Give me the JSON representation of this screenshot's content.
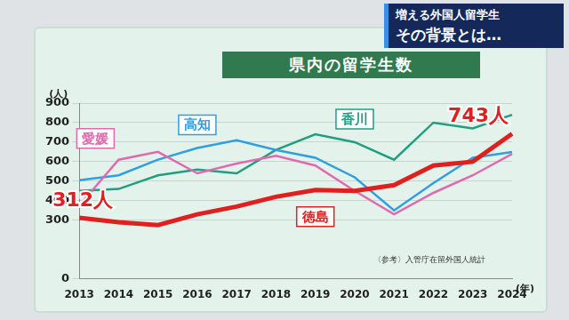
{
  "header": {
    "lines": [
      "増える外国人留学生",
      "その背景とは…"
    ]
  },
  "chart_data": {
    "type": "line",
    "title": "県内の留学生数",
    "y_label": "(人)",
    "x_label": "(年)",
    "source": "〈参考〉入管庁在留外国人統計",
    "categories": [
      "2013",
      "2014",
      "2015",
      "2016",
      "2017",
      "2018",
      "2019",
      "2020",
      "2021",
      "2022",
      "2023",
      "2024"
    ],
    "series": [
      {
        "name": "愛媛",
        "color": "#e06aae",
        "values": [
          375,
          610,
          650,
          540,
          590,
          630,
          580,
          450,
          330,
          440,
          530,
          640
        ]
      },
      {
        "name": "高知",
        "color": "#2f9fe0",
        "values": [
          505,
          530,
          610,
          670,
          710,
          660,
          620,
          520,
          350,
          490,
          620,
          650
        ]
      },
      {
        "name": "香川",
        "color": "#1f9e80",
        "values": [
          450,
          460,
          530,
          560,
          540,
          660,
          740,
          700,
          610,
          800,
          770,
          840
        ]
      },
      {
        "name": "徳島",
        "color": "#e0201e",
        "values": [
          312,
          290,
          275,
          330,
          370,
          420,
          455,
          450,
          480,
          580,
          600,
          743
        ]
      }
    ],
    "annotations": [
      {
        "text": "312人",
        "series": "徳島",
        "category": "2013"
      },
      {
        "text": "743人",
        "series": "徳島",
        "category": "2024"
      }
    ],
    "ylim": [
      0,
      900
    ],
    "yticks": [
      0,
      300,
      400,
      500,
      600,
      700,
      800,
      900
    ],
    "grid": true,
    "legend": false
  }
}
